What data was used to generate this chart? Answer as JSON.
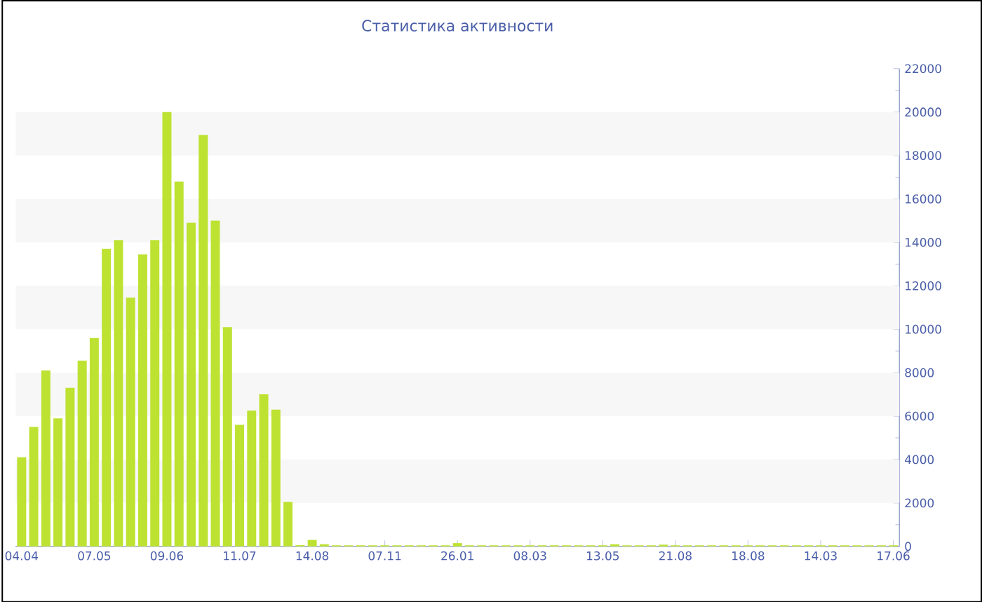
{
  "chart_data": {
    "type": "bar",
    "title": "Статистика активности",
    "categories": [
      "04.04",
      null,
      null,
      null,
      null,
      null,
      "07.05",
      null,
      null,
      null,
      null,
      null,
      "09.06",
      null,
      null,
      null,
      null,
      null,
      "11.07",
      null,
      null,
      null,
      null,
      null,
      "14.08",
      null,
      null,
      null,
      null,
      null,
      "07.11",
      null,
      null,
      null,
      null,
      null,
      "26.01",
      null,
      null,
      null,
      null,
      null,
      "08.03",
      null,
      null,
      null,
      null,
      null,
      "13.05",
      null,
      null,
      null,
      null,
      null,
      "21.08",
      null,
      null,
      null,
      null,
      null,
      "18.08",
      null,
      null,
      null,
      null,
      null,
      "14.03",
      null,
      null,
      null,
      null,
      null,
      "17.06"
    ],
    "values": [
      4100,
      5500,
      8100,
      5900,
      7300,
      8550,
      9600,
      13700,
      14100,
      11450,
      13450,
      14100,
      20000,
      16800,
      14900,
      18950,
      15000,
      10100,
      5600,
      6250,
      7000,
      6300,
      2050,
      60,
      300,
      100,
      50,
      50,
      50,
      50,
      50,
      50,
      50,
      50,
      50,
      50,
      150,
      50,
      50,
      50,
      50,
      50,
      50,
      50,
      50,
      50,
      50,
      50,
      50,
      100,
      50,
      50,
      50,
      80,
      50,
      50,
      50,
      50,
      50,
      50,
      50,
      50,
      50,
      50,
      50,
      50,
      50,
      50,
      50,
      50,
      50,
      50,
      50
    ],
    "color": "#bde232",
    "ylim": [
      0,
      22000
    ],
    "yticks": [
      0,
      2000,
      4000,
      6000,
      8000,
      10000,
      12000,
      14000,
      16000,
      18000,
      20000,
      22000
    ],
    "bands": [
      {
        "axis": "y",
        "from": 2000,
        "to": 4000,
        "color": "#f7f7f7"
      },
      {
        "axis": "y",
        "from": 6000,
        "to": 8000,
        "color": "#f7f7f7"
      },
      {
        "axis": "y",
        "from": 10000,
        "to": 12000,
        "color": "#f7f7f7"
      },
      {
        "axis": "y",
        "from": 14000,
        "to": 16000,
        "color": "#f7f7f7"
      },
      {
        "axis": "y",
        "from": 18000,
        "to": 20000,
        "color": "#f7f7f7"
      }
    ]
  }
}
